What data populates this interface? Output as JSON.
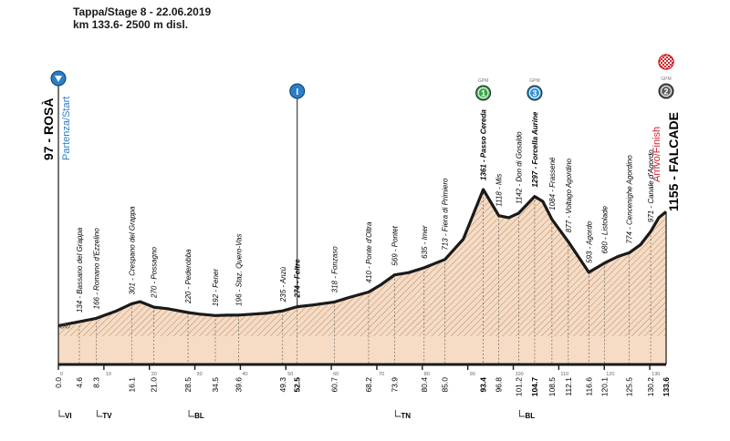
{
  "header": {
    "stage_line": "Tappa/Stage 8 - 22.06.2019",
    "distance_line": "km 133.6- 2500 m disl."
  },
  "colors": {
    "fill": "#f6dcc4",
    "hatch": "#b98f74",
    "profile": "#1a1a1a",
    "start_blue": "#2a7fc8",
    "finish_red": "#d2232a",
    "gpm1": "#3aa74a",
    "gpm3": "#2e8fd1",
    "gpm2": "#5c5c5c"
  },
  "start": {
    "label": "97 - ROSÀ",
    "sub": "Partenza/Start",
    "icon": "start-triangle-icon"
  },
  "finish": {
    "label": "1155 - FALCADE",
    "sub": "Arrivo/Finish",
    "icon": "checkered-flag-icon"
  },
  "markers": [
    {
      "km": 52.5,
      "type": "sprint",
      "symbol": "I",
      "icon": "intermediate-sprint-icon"
    },
    {
      "km": 93.4,
      "type": "gpm",
      "category": "1",
      "caption": "GPM",
      "icon": "kom-cat1-icon"
    },
    {
      "km": 104.7,
      "type": "gpm",
      "category": "3",
      "caption": "GPM",
      "icon": "kom-cat3-icon"
    },
    {
      "km": 133.6,
      "type": "gpm",
      "category": "2",
      "caption": "GPM",
      "icon": "kom-cat2-icon"
    }
  ],
  "province_labels": [
    {
      "km": 0.0,
      "code": "VI"
    },
    {
      "km": 8.3,
      "code": "TV"
    },
    {
      "km": 28.5,
      "code": "BL"
    },
    {
      "km": 73.9,
      "code": "TN"
    },
    {
      "km": 101.2,
      "code": "BL"
    }
  ],
  "chart_data": {
    "type": "area",
    "x_unit": "km",
    "y_unit": "m",
    "xlim": [
      0,
      133.6
    ],
    "ylim": [
      0,
      1361
    ],
    "profile": [
      [
        0,
        97
      ],
      [
        4.6,
        134
      ],
      [
        8.3,
        166
      ],
      [
        12.5,
        230
      ],
      [
        16.1,
        301
      ],
      [
        18,
        320
      ],
      [
        21.0,
        270
      ],
      [
        24,
        255
      ],
      [
        28.5,
        220
      ],
      [
        31,
        205
      ],
      [
        34.5,
        192
      ],
      [
        37,
        195
      ],
      [
        39.6,
        196
      ],
      [
        43,
        205
      ],
      [
        46,
        215
      ],
      [
        49.3,
        235
      ],
      [
        52.5,
        274
      ],
      [
        56,
        290
      ],
      [
        60.7,
        318
      ],
      [
        64,
        360
      ],
      [
        68.2,
        410
      ],
      [
        71,
        480
      ],
      [
        73.9,
        569
      ],
      [
        77,
        590
      ],
      [
        80.4,
        635
      ],
      [
        85.0,
        713
      ],
      [
        89,
        900
      ],
      [
        93.4,
        1361
      ],
      [
        96.8,
        1118
      ],
      [
        99,
        1100
      ],
      [
        101.2,
        1142
      ],
      [
        104.7,
        1297
      ],
      [
        106.5,
        1250
      ],
      [
        108.5,
        1084
      ],
      [
        112.1,
        877
      ],
      [
        116.6,
        593
      ],
      [
        120.1,
        680
      ],
      [
        123,
        740
      ],
      [
        125.5,
        774
      ],
      [
        128,
        850
      ],
      [
        130.2,
        971
      ],
      [
        132,
        1100
      ],
      [
        133.6,
        1155
      ]
    ],
    "point_labels": [
      {
        "km": 4.6,
        "alt": "134",
        "name": "Bassano del Grappa"
      },
      {
        "km": 8.3,
        "alt": "166",
        "name": "Romano d'Ezzelino"
      },
      {
        "km": 16.1,
        "alt": "301",
        "name": "Crespano del Grappa"
      },
      {
        "km": 21.0,
        "alt": "270",
        "name": "Possagno"
      },
      {
        "km": 28.5,
        "alt": "220",
        "name": "Pederobba"
      },
      {
        "km": 34.5,
        "alt": "192",
        "name": "Fener"
      },
      {
        "km": 39.6,
        "alt": "196",
        "name": "Staz. Quero-Vas"
      },
      {
        "km": 49.3,
        "alt": "235",
        "name": "Anzù"
      },
      {
        "km": 52.5,
        "alt": "274",
        "name": "Feltre",
        "bold": true
      },
      {
        "km": 60.7,
        "alt": "318",
        "name": "Fonzaso"
      },
      {
        "km": 68.2,
        "alt": "410",
        "name": "Ponte d'Oltra"
      },
      {
        "km": 73.9,
        "alt": "569",
        "name": "Pontet"
      },
      {
        "km": 80.4,
        "alt": "635",
        "name": "Imer"
      },
      {
        "km": 85.0,
        "alt": "713",
        "name": "Fiera di Primiero"
      },
      {
        "km": 93.4,
        "alt": "1361",
        "name": "Passo Cereda",
        "bold": true
      },
      {
        "km": 96.8,
        "alt": "1118",
        "name": "Mis"
      },
      {
        "km": 101.2,
        "alt": "1142",
        "name": "Don di Gosaldo"
      },
      {
        "km": 104.7,
        "alt": "1297",
        "name": "Forcella Aurine",
        "bold": true
      },
      {
        "km": 108.5,
        "alt": "1084",
        "name": "Frassené"
      },
      {
        "km": 112.1,
        "alt": "877",
        "name": "Voltago Agordino"
      },
      {
        "km": 116.6,
        "alt": "593",
        "name": "Agordo"
      },
      {
        "km": 120.1,
        "alt": "680",
        "name": "Listolade"
      },
      {
        "km": 125.5,
        "alt": "774",
        "name": "Cencenighe Agordino"
      },
      {
        "km": 130.2,
        "alt": "971",
        "name": "Canale d'Agordo"
      }
    ],
    "km_labels": [
      {
        "km": 0.0,
        "text": "0.0"
      },
      {
        "km": 4.6,
        "text": "4.6"
      },
      {
        "km": 8.3,
        "text": "8.3"
      },
      {
        "km": 16.1,
        "text": "16.1"
      },
      {
        "km": 21.0,
        "text": "21.0"
      },
      {
        "km": 28.5,
        "text": "28.5"
      },
      {
        "km": 34.5,
        "text": "34.5"
      },
      {
        "km": 39.6,
        "text": "39.6"
      },
      {
        "km": 49.3,
        "text": "49.3"
      },
      {
        "km": 52.5,
        "text": "52.5",
        "bold": true
      },
      {
        "km": 60.7,
        "text": "60.7"
      },
      {
        "km": 68.2,
        "text": "68.2"
      },
      {
        "km": 73.9,
        "text": "73.9"
      },
      {
        "km": 80.4,
        "text": "80.4"
      },
      {
        "km": 85.0,
        "text": "85.0"
      },
      {
        "km": 93.4,
        "text": "93.4",
        "bold": true
      },
      {
        "km": 96.8,
        "text": "96.8"
      },
      {
        "km": 101.2,
        "text": "101.2"
      },
      {
        "km": 104.7,
        "text": "104.7",
        "bold": true
      },
      {
        "km": 108.5,
        "text": "108.5"
      },
      {
        "km": 112.1,
        "text": "112.1"
      },
      {
        "km": 116.6,
        "text": "116.6"
      },
      {
        "km": 120.1,
        "text": "120.1"
      },
      {
        "km": 125.5,
        "text": "125.5"
      },
      {
        "km": 130.2,
        "text": "130.2"
      },
      {
        "km": 133.6,
        "text": "133.6",
        "bold": true
      }
    ],
    "axis_ticks": [
      0,
      10,
      20,
      30,
      40,
      50,
      60,
      70,
      80,
      90,
      100,
      110,
      120,
      130
    ]
  }
}
